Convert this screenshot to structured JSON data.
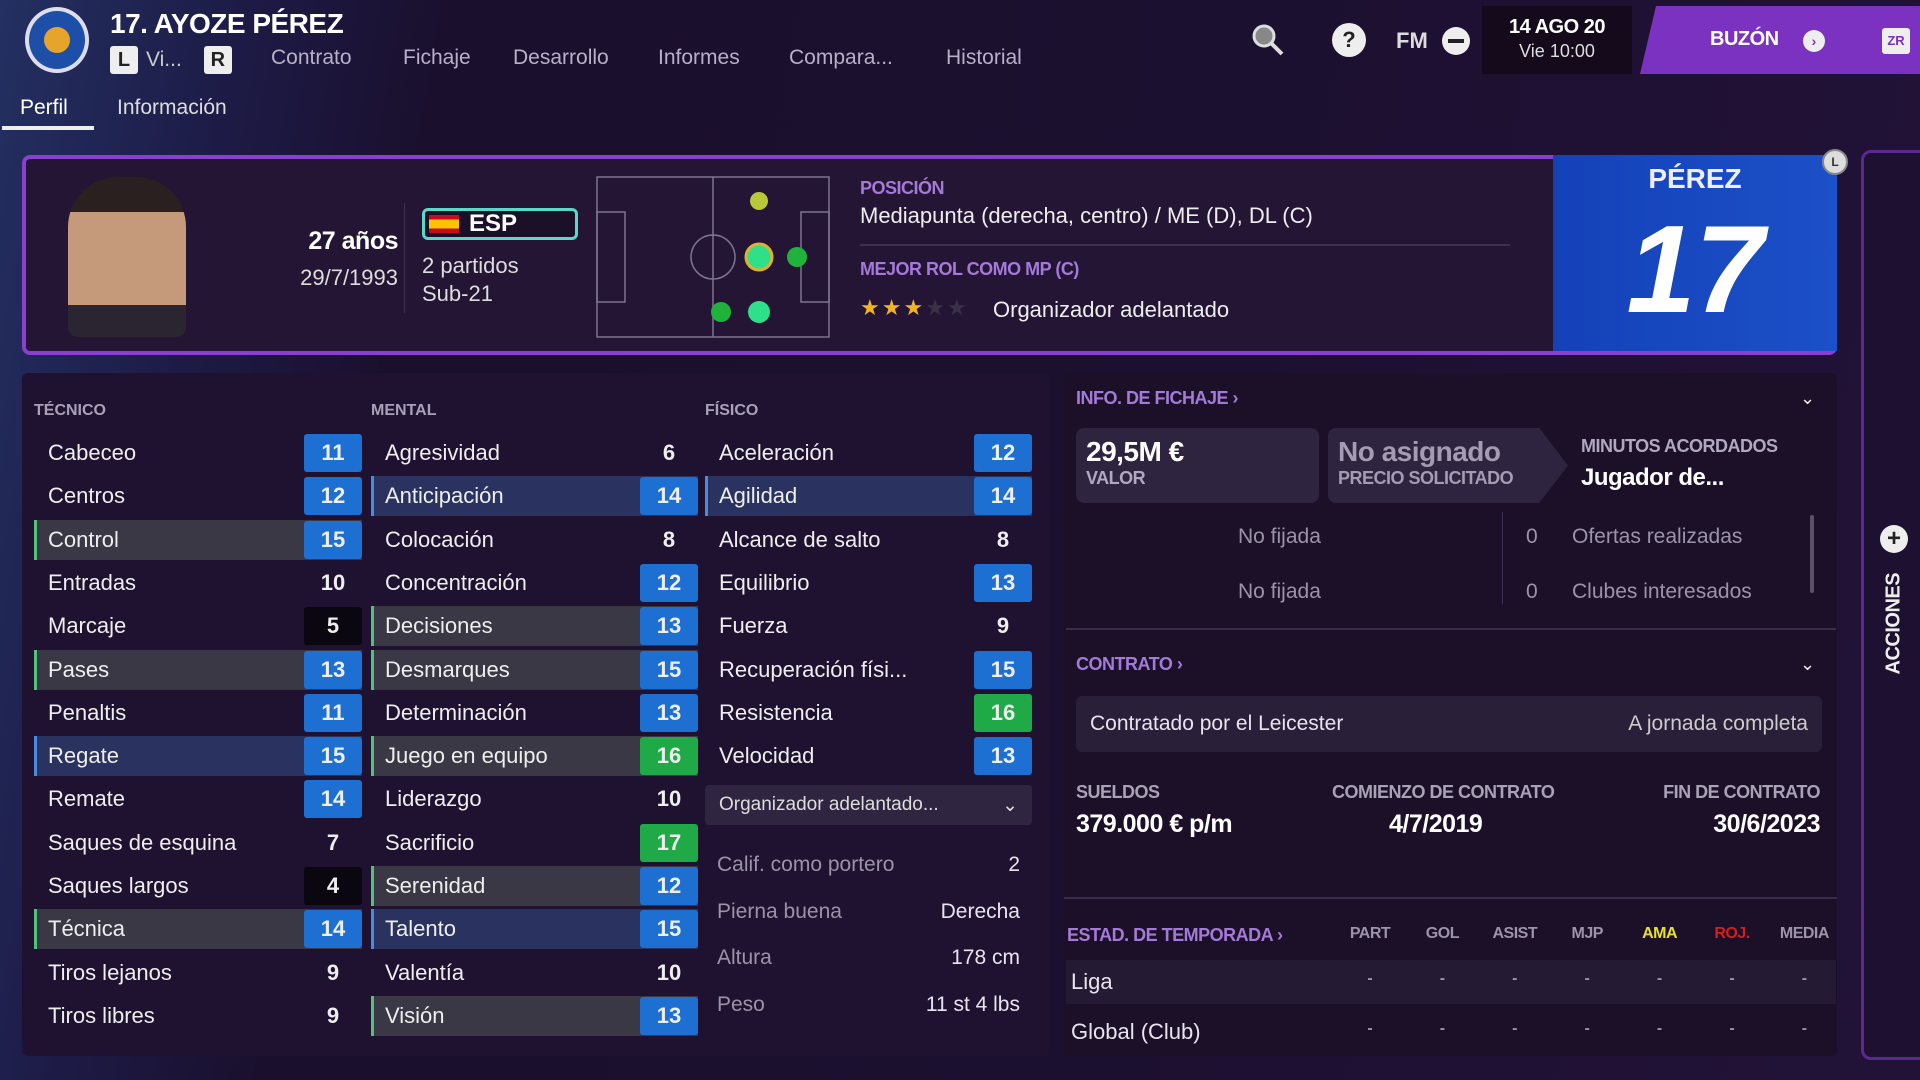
{
  "header": {
    "title": "17. AYOZE PÉREZ",
    "chip_left": "L",
    "nav_first": "Vi...",
    "chip_right": "R",
    "nav": [
      "Contrato",
      "Fichaje",
      "Desarrollo",
      "Informes",
      "Compara...",
      "Historial"
    ],
    "fm_label": "FM",
    "date": "14 AGO 20",
    "time": "Vie 10:00",
    "inbox": "BUZÓN",
    "zr": "ZR"
  },
  "tabs": [
    "Perfil",
    "Información"
  ],
  "profile": {
    "age": "27 años",
    "dob": "29/7/1993",
    "nation": "ESP",
    "caps": "2 partidos",
    "level": "Sub-21",
    "position_label": "POSICIÓN",
    "position": "Mediapunta (derecha, centro) / ME (D), DL (C)",
    "role_label": "MEJOR ROL COMO MP (C)",
    "role": "Organizador adelantado",
    "role_stars": 3,
    "role_stars_max": 5,
    "surname": "PÉREZ",
    "number": "17",
    "badge": "L"
  },
  "attributes": {
    "tecnico": {
      "label": "TÉCNICO",
      "items": [
        {
          "name": "Cabeceo",
          "value": 11
        },
        {
          "name": "Centros",
          "value": 12
        },
        {
          "name": "Control",
          "value": 15,
          "hl": "key"
        },
        {
          "name": "Entradas",
          "value": 10
        },
        {
          "name": "Marcaje",
          "value": 5
        },
        {
          "name": "Pases",
          "value": 13,
          "hl": "key"
        },
        {
          "name": "Penaltis",
          "value": 11
        },
        {
          "name": "Regate",
          "value": 15,
          "hl": "role"
        },
        {
          "name": "Remate",
          "value": 14
        },
        {
          "name": "Saques de esquina",
          "value": 7
        },
        {
          "name": "Saques largos",
          "value": 4
        },
        {
          "name": "Técnica",
          "value": 14,
          "hl": "key"
        },
        {
          "name": "Tiros lejanos",
          "value": 9
        },
        {
          "name": "Tiros libres",
          "value": 9
        }
      ]
    },
    "mental": {
      "label": "MENTAL",
      "items": [
        {
          "name": "Agresividad",
          "value": 6
        },
        {
          "name": "Anticipación",
          "value": 14,
          "hl": "role"
        },
        {
          "name": "Colocación",
          "value": 8
        },
        {
          "name": "Concentración",
          "value": 12
        },
        {
          "name": "Decisiones",
          "value": 13,
          "hl": "key"
        },
        {
          "name": "Desmarques",
          "value": 15,
          "hl": "key"
        },
        {
          "name": "Determinación",
          "value": 13
        },
        {
          "name": "Juego en equipo",
          "value": 16,
          "hl": "key"
        },
        {
          "name": "Liderazgo",
          "value": 10
        },
        {
          "name": "Sacrificio",
          "value": 17
        },
        {
          "name": "Serenidad",
          "value": 12,
          "hl": "key"
        },
        {
          "name": "Talento",
          "value": 15,
          "hl": "role"
        },
        {
          "name": "Valentía",
          "value": 10
        },
        {
          "name": "Visión",
          "value": 13,
          "hl": "key"
        }
      ]
    },
    "fisico": {
      "label": "FÍSICO",
      "items": [
        {
          "name": "Aceleración",
          "value": 12
        },
        {
          "name": "Agilidad",
          "value": 14,
          "hl": "role"
        },
        {
          "name": "Alcance de salto",
          "value": 8
        },
        {
          "name": "Equilibrio",
          "value": 13
        },
        {
          "name": "Fuerza",
          "value": 9
        },
        {
          "name": "Recuperación físi...",
          "value": 15
        },
        {
          "name": "Resistencia",
          "value": 16
        },
        {
          "name": "Velocidad",
          "value": 13
        }
      ]
    },
    "role_select": "Organizador adelantado...",
    "extra": [
      {
        "label": "Calif. como portero",
        "value": "2"
      },
      {
        "label": "Pierna buena",
        "value": "Derecha"
      },
      {
        "label": "Altura",
        "value": "178 cm"
      },
      {
        "label": "Peso",
        "value": "11 st 4 lbs"
      }
    ]
  },
  "transfer": {
    "title": "INFO. DE FICHAJE ›",
    "value": "29,5M €",
    "value_label": "VALOR",
    "asking": "No asignado",
    "asking_label": "PRECIO SOLICITADO",
    "minutes_label": "MINUTOS ACORDADOS",
    "minutes": "Jugador de...",
    "rows": [
      {
        "left": "No fijada",
        "count": "0",
        "right": "Ofertas realizadas"
      },
      {
        "left": "No fijada",
        "count": "0",
        "right": "Clubes interesados"
      }
    ]
  },
  "contract": {
    "title": "CONTRATO ›",
    "desc": "Contratado por el Leicester",
    "type": "A jornada completa",
    "wage_label": "SUELDOS",
    "wage": "379.000 € p/m",
    "start_label": "COMIENZO DE CONTRATO",
    "start": "4/7/2019",
    "end_label": "FIN DE CONTRATO",
    "end": "30/6/2023"
  },
  "season": {
    "title": "ESTAD. DE TEMPORADA ›",
    "columns": [
      "PART",
      "GOL",
      "ASIST",
      "MJP",
      "AMA",
      "ROJ.",
      "MEDIA"
    ],
    "rows": [
      {
        "name": "Liga",
        "values": [
          "-",
          "-",
          "-",
          "-",
          "-",
          "-",
          "-"
        ]
      },
      {
        "name": "Global (Club)",
        "values": [
          "-",
          "-",
          "-",
          "-",
          "-",
          "-",
          "-"
        ]
      }
    ]
  },
  "actions_label": "ACCIONES",
  "colors": {
    "accent": "#8a3fd0",
    "blue": "#1d6fd2",
    "green": "#1faa47",
    "yellow": "#e8e030",
    "red": "#d02020"
  }
}
